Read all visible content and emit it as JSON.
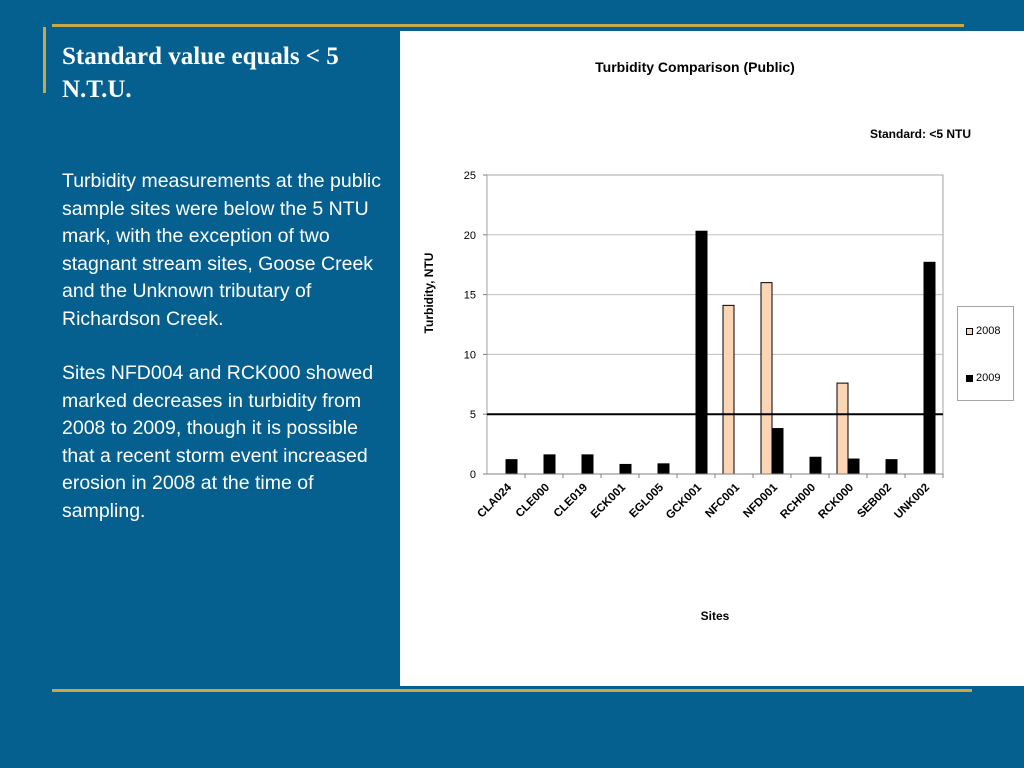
{
  "slide": {
    "title": "Standard value equals < 5 N.T.U.",
    "paragraphs": [
      "Turbidity measurements at the public sample sites were below the 5 NTU mark, with the exception of two stagnant stream sites, Goose Creek and the Unknown tributary of Richardson Creek.",
      "Sites NFD004 and RCK000 showed marked decreases in turbidity from 2008 to 2009, though it is possible that a recent storm event increased erosion in 2008 at the time of sampling."
    ]
  },
  "colors": {
    "background": "#05608f",
    "accent_gold": "#c7a94a",
    "series_2008": "#fcd5b4",
    "series_2009": "#000000"
  },
  "chart_data": {
    "type": "bar",
    "title": "Turbidity Comparison (Public)",
    "annotation": "Standard: <5 NTU",
    "xlabel": "Sites",
    "ylabel": "Turbidity, NTU",
    "categories": [
      "CLA024",
      "CLE000",
      "CLE019",
      "ECK001",
      "EGL005",
      "GCK001",
      "NFC001",
      "NFD001",
      "RCH000",
      "RCK000",
      "SEB002",
      "UNK002"
    ],
    "series": [
      {
        "name": "2008",
        "color": "#fcd5b4",
        "values": [
          null,
          null,
          null,
          null,
          null,
          null,
          14.1,
          16.0,
          null,
          7.6,
          null,
          null
        ]
      },
      {
        "name": "2009",
        "color": "#000000",
        "values": [
          1.2,
          1.6,
          1.6,
          0.8,
          0.85,
          20.3,
          null,
          3.8,
          1.4,
          1.25,
          1.2,
          17.7
        ]
      }
    ],
    "ylim": [
      0,
      25
    ],
    "yticks": [
      0,
      5,
      10,
      15,
      20,
      25
    ],
    "reference_line": 5,
    "grid": true,
    "legend": "right"
  }
}
